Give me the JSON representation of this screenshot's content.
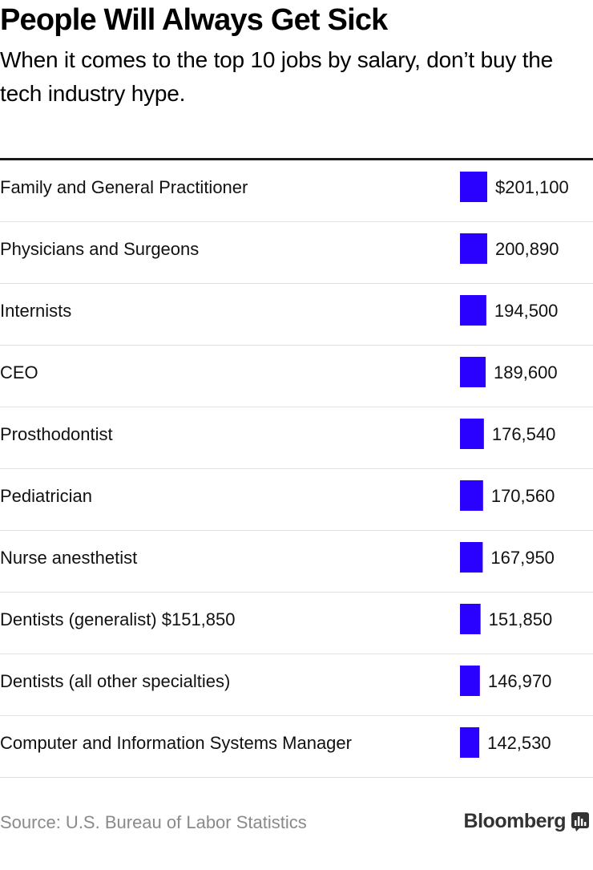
{
  "header": {
    "title": "People Will Always Get Sick",
    "subtitle": "When it comes to the top 10 jobs by salary, don’t buy the tech industry hype."
  },
  "footer": {
    "source": "Source: U.S. Bureau of Labor Statistics",
    "brand": "Bloomberg",
    "brand_icon": "bloomberg-chart-icon"
  },
  "colors": {
    "bar": "#2a00ff",
    "rule": "#1a1a1a",
    "divider": "#e2e2e2"
  },
  "chart_data": {
    "type": "bar",
    "orientation": "horizontal",
    "title": "People Will Always Get Sick",
    "subtitle": "When it comes to the top 10 jobs by salary, don’t buy the tech industry hype.",
    "categories": [
      "Family and General Practitioner",
      "Physicians and Surgeons",
      "Internists",
      "CEO",
      "Prosthodontist",
      "Pediatrician",
      "Nurse anesthetist",
      "Dentists (generalist) $151,850",
      "Dentists (all other specialties)",
      "Computer and Information Systems Manager"
    ],
    "values": [
      201100,
      200890,
      194500,
      189600,
      176540,
      170560,
      167950,
      151850,
      146970,
      142530
    ],
    "value_labels": [
      "$201,100",
      "200,890",
      "194,500",
      "189,600",
      "176,540",
      "170,560",
      "167,950",
      "151,850",
      "146,970",
      "142,530"
    ],
    "xlim": [
      0,
      201100
    ],
    "grid": false,
    "legend": "none"
  }
}
